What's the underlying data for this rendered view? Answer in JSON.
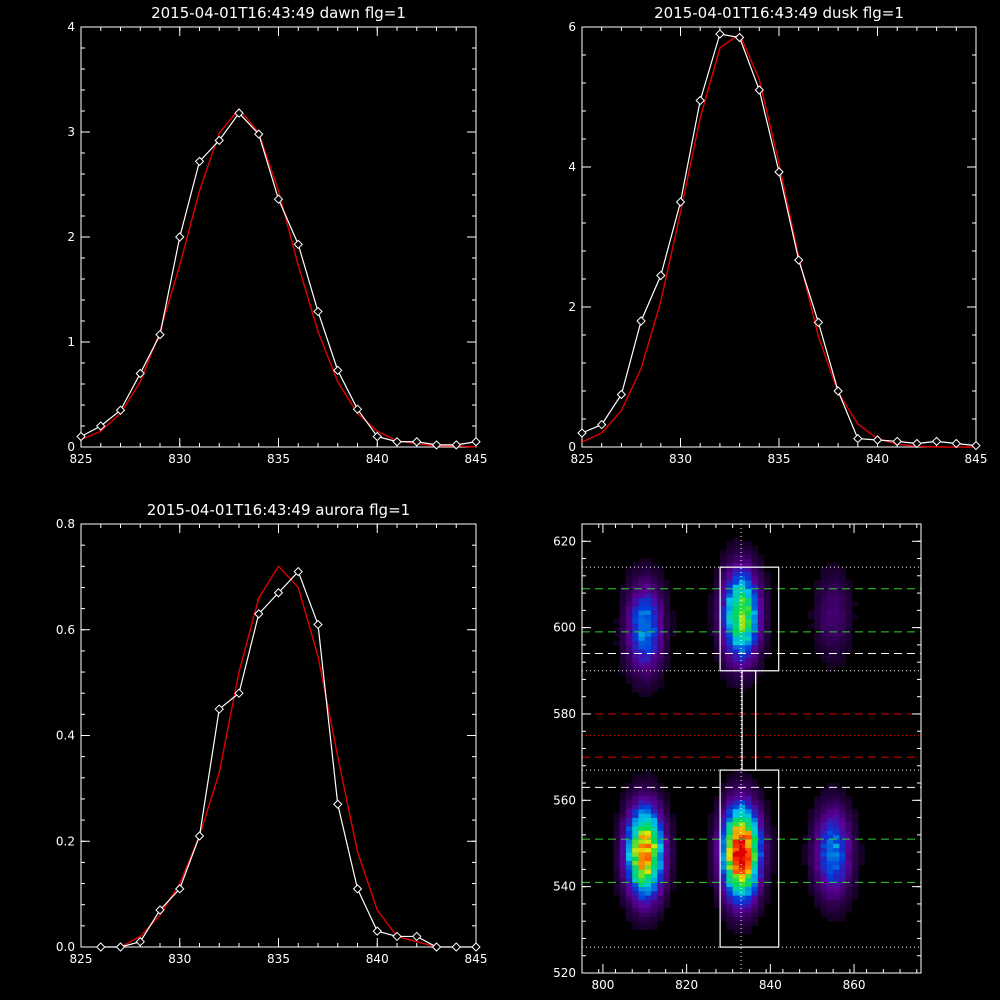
{
  "colors": {
    "background": "#000000",
    "axes": "#ffffff",
    "data_line": "#ffffff",
    "fit_line": "#e00000",
    "grid_white": "#ffffff",
    "grid_green": "#30d030",
    "grid_red": "#e00000"
  },
  "chart_data": [
    {
      "type": "line",
      "title": "2015-04-01T16:43:49 dawn flg=1",
      "xlim": [
        825,
        845
      ],
      "ylim": [
        0,
        4
      ],
      "xticks": [
        "825",
        "830",
        "835",
        "840",
        "845"
      ],
      "yticks": [
        "0",
        "1",
        "2",
        "3",
        "4"
      ],
      "series": [
        {
          "marker": "diamond",
          "x": [
            825,
            826,
            827,
            828,
            829,
            830,
            831,
            832,
            833,
            834,
            835,
            836,
            837,
            838,
            839,
            840,
            841,
            842,
            843,
            844,
            845
          ],
          "y": [
            0.1,
            0.2,
            0.35,
            0.7,
            1.07,
            2.0,
            2.72,
            2.92,
            3.18,
            2.98,
            2.36,
            1.93,
            1.29,
            0.73,
            0.36,
            0.1,
            0.05,
            0.05,
            0.02,
            0.02,
            0.05
          ]
        },
        {
          "style": "fit",
          "x": [
            825,
            826,
            827,
            828,
            829,
            830,
            831,
            832,
            833,
            834,
            835,
            836,
            837,
            838,
            839,
            840,
            841,
            842,
            843,
            844,
            845
          ],
          "y": [
            0.07,
            0.15,
            0.32,
            0.62,
            1.1,
            1.73,
            2.44,
            2.99,
            3.22,
            2.99,
            2.44,
            1.73,
            1.1,
            0.62,
            0.32,
            0.15,
            0.06,
            0.03,
            0.01,
            0.01,
            0.0
          ]
        }
      ]
    },
    {
      "type": "line",
      "title": "2015-04-01T16:43:49 dusk flg=1",
      "xlim": [
        825,
        845
      ],
      "ylim": [
        0,
        6
      ],
      "xticks": [
        "825",
        "830",
        "835",
        "840",
        "845"
      ],
      "yticks": [
        "0",
        "2",
        "4",
        "6"
      ],
      "series": [
        {
          "marker": "diamond",
          "x": [
            825,
            826,
            827,
            828,
            829,
            830,
            831,
            832,
            833,
            834,
            835,
            836,
            837,
            838,
            839,
            840,
            841,
            842,
            843,
            844,
            845
          ],
          "y": [
            0.2,
            0.32,
            0.75,
            1.8,
            2.45,
            3.5,
            4.95,
            5.9,
            5.85,
            5.1,
            3.93,
            2.67,
            1.78,
            0.8,
            0.12,
            0.1,
            0.08,
            0.05,
            0.08,
            0.05,
            0.02
          ]
        },
        {
          "style": "fit",
          "x": [
            825,
            826,
            827,
            828,
            829,
            830,
            831,
            832,
            833,
            834,
            835,
            836,
            837,
            838,
            839,
            840,
            841,
            842,
            843,
            844,
            845
          ],
          "y": [
            0.07,
            0.2,
            0.52,
            1.12,
            2.08,
            3.35,
            4.7,
            5.7,
            5.9,
            5.25,
            4.05,
            2.72,
            1.58,
            0.78,
            0.33,
            0.12,
            0.04,
            0.01,
            0.0,
            0.0,
            0.0
          ]
        }
      ]
    },
    {
      "type": "line",
      "title": "2015-04-01T16:43:49 aurora flg=1",
      "xlim": [
        825,
        845
      ],
      "ylim": [
        0,
        0.8
      ],
      "xticks": [
        "825",
        "830",
        "835",
        "840",
        "845"
      ],
      "yticks": [
        "0.0",
        "0.2",
        "0.4",
        "0.6",
        "0.8"
      ],
      "series": [
        {
          "marker": "diamond",
          "x": [
            826,
            827,
            828,
            829,
            830,
            831,
            832,
            833,
            834,
            835,
            836,
            837,
            838,
            839,
            840,
            841,
            842,
            843,
            844,
            845
          ],
          "y": [
            0.0,
            0.0,
            0.01,
            0.07,
            0.11,
            0.21,
            0.45,
            0.48,
            0.63,
            0.67,
            0.71,
            0.61,
            0.27,
            0.11,
            0.03,
            0.02,
            0.02,
            0.0,
            0.0,
            0.0
          ]
        },
        {
          "style": "fit",
          "x": [
            827,
            828,
            829,
            830,
            831,
            832,
            833,
            834,
            835,
            836,
            837,
            838,
            839,
            840,
            841,
            842,
            843
          ],
          "y": [
            0.0,
            0.02,
            0.06,
            0.12,
            0.21,
            0.33,
            0.52,
            0.66,
            0.72,
            0.68,
            0.55,
            0.36,
            0.18,
            0.07,
            0.02,
            0.01,
            0.0
          ]
        }
      ]
    },
    {
      "type": "heatmap",
      "title": "",
      "xlim": [
        795,
        876
      ],
      "ylim": [
        520,
        624
      ],
      "xticks": [
        "800",
        "820",
        "840",
        "860"
      ],
      "yticks": [
        "520",
        "540",
        "560",
        "580",
        "600",
        "620"
      ],
      "colormap": "rainbow",
      "blobs": [
        {
          "x": 810,
          "y": 548,
          "intensity": 0.85
        },
        {
          "x": 810,
          "y": 600,
          "intensity": 0.45
        },
        {
          "x": 833,
          "y": 548,
          "intensity": 1.0
        },
        {
          "x": 833,
          "y": 603,
          "intensity": 0.7
        },
        {
          "x": 855,
          "y": 548,
          "intensity": 0.45
        },
        {
          "x": 855,
          "y": 603,
          "intensity": 0.2
        }
      ],
      "peak_marker": {
        "x": 833,
        "y": 548
      },
      "boxes": [
        {
          "x": [
            828,
            842
          ],
          "y": [
            590,
            614
          ]
        },
        {
          "x": [
            828,
            842
          ],
          "y": [
            526,
            567
          ]
        }
      ],
      "hlines": [
        {
          "y": 614,
          "style": "dotted",
          "color": "#ffffff"
        },
        {
          "y": 609,
          "style": "dashed",
          "color": "#30d030"
        },
        {
          "y": 599,
          "style": "dashed",
          "color": "#30d030"
        },
        {
          "y": 594,
          "style": "dashed",
          "color": "#ffffff"
        },
        {
          "y": 590,
          "style": "dotted",
          "color": "#ffffff"
        },
        {
          "y": 580,
          "style": "dashed",
          "color": "#e00000"
        },
        {
          "y": 575,
          "style": "dotted",
          "color": "#e00000"
        },
        {
          "y": 570,
          "style": "dashed",
          "color": "#e00000"
        },
        {
          "y": 567,
          "style": "dotted",
          "color": "#ffffff"
        },
        {
          "y": 563,
          "style": "dashed",
          "color": "#ffffff"
        },
        {
          "y": 551,
          "style": "dashed",
          "color": "#30d030"
        },
        {
          "y": 541,
          "style": "dashed",
          "color": "#30d030"
        },
        {
          "y": 526,
          "style": "dotted",
          "color": "#ffffff"
        }
      ],
      "vline": {
        "x": 833,
        "style": "dotted",
        "color": "#ffffff"
      }
    }
  ]
}
